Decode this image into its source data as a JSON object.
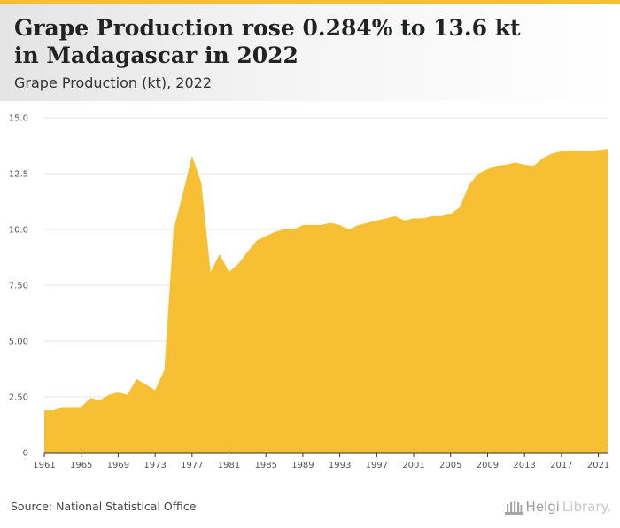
{
  "header": {
    "title": "Grape Production rose 0.284% to 13.6 kt in Madagascar in 2022",
    "subtitle": "Grape Production (kt), 2022"
  },
  "footer": {
    "source": "Source: National Statistical Office",
    "brand_name_a": "Helgi",
    "brand_name_b": "Library."
  },
  "colors": {
    "accent": "#f7bf33",
    "area": "#f7bf33",
    "grid": "#e6e6e6"
  },
  "chart_data": {
    "type": "area",
    "title": "Grape Production rose 0.284% to 13.6 kt in Madagascar in 2022",
    "subtitle": "Grape Production (kt), 2022",
    "xlabel": "",
    "ylabel": "",
    "ylim": [
      0,
      15
    ],
    "xlim": [
      1961,
      2022
    ],
    "yticks": [
      0,
      2.5,
      5,
      7.5,
      10,
      12.5,
      15
    ],
    "ytick_labels": [
      "0",
      "2.50",
      "5.00",
      "7.50",
      "10.0",
      "12.5",
      "15.0"
    ],
    "xticks": [
      1961,
      1965,
      1969,
      1973,
      1977,
      1981,
      1985,
      1989,
      1993,
      1997,
      2001,
      2005,
      2009,
      2013,
      2017,
      2021
    ],
    "grid": true,
    "legend": "none",
    "x": [
      1961,
      1962,
      1963,
      1964,
      1965,
      1966,
      1967,
      1968,
      1969,
      1970,
      1971,
      1972,
      1973,
      1974,
      1975,
      1976,
      1977,
      1978,
      1979,
      1980,
      1981,
      1982,
      1983,
      1984,
      1985,
      1986,
      1987,
      1988,
      1989,
      1990,
      1991,
      1992,
      1993,
      1994,
      1995,
      1996,
      1997,
      1998,
      1999,
      2000,
      2001,
      2002,
      2003,
      2004,
      2005,
      2006,
      2007,
      2008,
      2009,
      2010,
      2011,
      2012,
      2013,
      2014,
      2015,
      2016,
      2017,
      2018,
      2019,
      2020,
      2021,
      2022
    ],
    "series": [
      {
        "values": [
          1.9,
          1.9,
          2.05,
          2.05,
          2.05,
          2.45,
          2.35,
          2.6,
          2.7,
          2.6,
          3.3,
          3.05,
          2.8,
          3.7,
          10.0,
          11.6,
          13.3,
          12.1,
          8.1,
          8.9,
          8.1,
          8.45,
          9.0,
          9.5,
          9.7,
          9.9,
          10.0,
          10.0,
          10.2,
          10.2,
          10.2,
          10.3,
          10.2,
          10.0,
          10.2,
          10.3,
          10.4,
          10.5,
          10.6,
          10.4,
          10.5,
          10.5,
          10.6,
          10.6,
          10.7,
          11.0,
          12.0,
          12.5,
          12.7,
          12.85,
          12.9,
          13.0,
          12.9,
          12.85,
          13.2,
          13.4,
          13.5,
          13.55,
          13.5,
          13.5,
          13.55,
          13.6
        ]
      }
    ]
  }
}
